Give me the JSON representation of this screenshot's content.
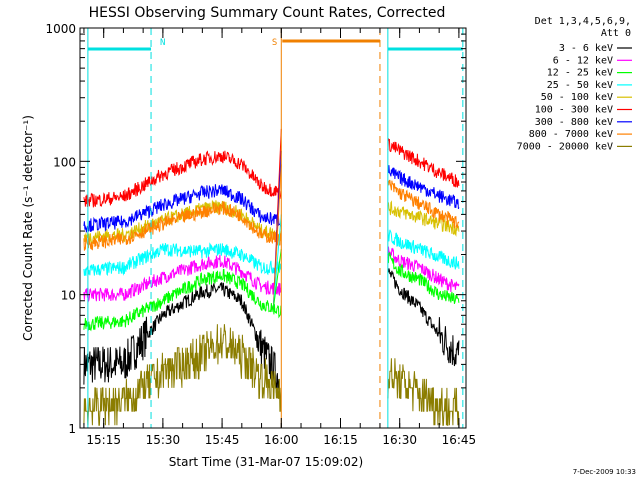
{
  "chart_data": {
    "type": "line",
    "title": "HESSI Observing Summary Count Rates, Corrected",
    "xlabel": "Start Time (31-Mar-07 15:09:02)",
    "ylabel": "Corrected Count Rate (s⁻¹ detector⁻¹)",
    "ylog": true,
    "ylim": [
      1,
      1000
    ],
    "xlim_minutes": [
      15.15,
      16.78
    ],
    "x_tick_labels": [
      "15:15",
      "15:30",
      "15:45",
      "16:00",
      "16:15",
      "16:30",
      "16:45"
    ],
    "y_tick_labels": [
      "1",
      "10",
      "100",
      "1000"
    ],
    "legend_header": [
      "Det 1,3,4,5,6,9,",
      "Att 0"
    ],
    "legend_position": "right",
    "timestamp": "7-Dec-2009 10:33",
    "annotations": [
      {
        "label": "N",
        "color": "#00e0e0"
      },
      {
        "label": "S",
        "color": "#f08000"
      }
    ],
    "gaps": [
      {
        "type": "night",
        "label": "N",
        "start": "15:11",
        "end": "15:27"
      },
      {
        "type": "saa",
        "label": "S",
        "start": "16:00",
        "end": "16:25"
      },
      {
        "type": "night",
        "label": "N",
        "start": "16:27",
        "end": "16:46"
      }
    ],
    "series": [
      {
        "name": "3 - 6 keV",
        "color": "#000000",
        "segment1": {
          "x": [
            "15:10",
            "15:20",
            "15:30",
            "15:40",
            "15:45",
            "15:50",
            "15:55",
            "16:00"
          ],
          "y": [
            3.0,
            3.0,
            7.0,
            10.5,
            11.0,
            9.0,
            4.0,
            2.2
          ]
        },
        "segment2": {
          "x": [
            "16:27",
            "16:30",
            "16:35",
            "16:40",
            "16:45"
          ],
          "y": [
            15,
            11,
            8,
            5,
            3.5
          ]
        }
      },
      {
        "name": "6 - 12 keV",
        "color": "#ff00ff",
        "segment1": {
          "x": [
            "15:10",
            "15:20",
            "15:30",
            "15:40",
            "15:45",
            "15:50",
            "15:55",
            "16:00"
          ],
          "y": [
            10,
            10,
            13.5,
            17,
            18,
            15,
            11.5,
            11
          ]
        },
        "segment2": {
          "x": [
            "16:27",
            "16:30",
            "16:35",
            "16:40",
            "16:45"
          ],
          "y": [
            21,
            18,
            16,
            13,
            11
          ]
        }
      },
      {
        "name": "12 - 25 keV",
        "color": "#00ff00",
        "segment1": {
          "x": [
            "15:10",
            "15:20",
            "15:30",
            "15:40",
            "15:45",
            "15:50",
            "15:55",
            "16:00"
          ],
          "y": [
            6,
            6.3,
            9,
            13,
            14,
            12,
            8.5,
            7.5
          ]
        },
        "segment2": {
          "x": [
            "16:27",
            "16:30",
            "16:35",
            "16:40",
            "16:45"
          ],
          "y": [
            19,
            15,
            13,
            10,
            9
          ]
        }
      },
      {
        "name": "25 - 50 keV",
        "color": "#00ffff",
        "segment1": {
          "x": [
            "15:10",
            "15:20",
            "15:30",
            "15:40",
            "15:45",
            "15:50",
            "15:55",
            "16:00"
          ],
          "y": [
            15,
            16,
            22,
            21,
            22,
            20,
            16,
            16
          ]
        },
        "segment2": {
          "x": [
            "16:27",
            "16:30",
            "16:35",
            "16:40",
            "16:45"
          ],
          "y": [
            28,
            25,
            22,
            19,
            17
          ]
        }
      },
      {
        "name": "50 - 100 keV",
        "color": "#d8c000",
        "segment1": {
          "x": [
            "15:10",
            "15:20",
            "15:30",
            "15:40",
            "15:45",
            "15:50",
            "15:55",
            "16:00"
          ],
          "y": [
            27,
            28,
            36,
            44,
            46,
            40,
            30,
            28
          ]
        },
        "segment2": {
          "x": [
            "16:27",
            "16:30",
            "16:35",
            "16:40",
            "16:45"
          ],
          "y": [
            45,
            42,
            38,
            34,
            31
          ]
        }
      },
      {
        "name": "100 - 300 keV",
        "color": "#ff0000",
        "segment1": {
          "x": [
            "15:10",
            "15:20",
            "15:30",
            "15:40",
            "15:45",
            "15:50",
            "15:55",
            "16:00"
          ],
          "y": [
            50,
            54,
            80,
            104,
            110,
            95,
            65,
            58
          ]
        },
        "segment2": {
          "x": [
            "16:27",
            "16:30",
            "16:35",
            "16:40",
            "16:45"
          ],
          "y": [
            135,
            120,
            100,
            82,
            70
          ]
        }
      },
      {
        "name": "300 - 800 keV",
        "color": "#0000ff",
        "segment1": {
          "x": [
            "15:10",
            "15:20",
            "15:30",
            "15:40",
            "15:45",
            "15:50",
            "15:55",
            "16:00"
          ],
          "y": [
            33,
            35,
            47,
            58,
            61,
            52,
            38,
            36
          ]
        },
        "segment2": {
          "x": [
            "16:27",
            "16:30",
            "16:35",
            "16:40",
            "16:45"
          ],
          "y": [
            85,
            75,
            65,
            55,
            48
          ]
        }
      },
      {
        "name": "800 - 7000 keV",
        "color": "#ff8000",
        "segment1": {
          "x": [
            "15:10",
            "15:20",
            "15:30",
            "15:40",
            "15:45",
            "15:50",
            "15:55",
            "16:00"
          ],
          "y": [
            24,
            26,
            34,
            42,
            45,
            39,
            28,
            26
          ]
        },
        "segment2": {
          "x": [
            "16:27",
            "16:30",
            "16:35",
            "16:40",
            "16:45"
          ],
          "y": [
            68,
            58,
            48,
            40,
            34
          ]
        }
      },
      {
        "name": "7000 - 20000 keV",
        "color": "#8b7d00",
        "segment1": {
          "x": [
            "15:10",
            "15:20",
            "15:30",
            "15:40",
            "15:45",
            "15:50",
            "15:55",
            "16:00"
          ],
          "y": [
            1.4,
            1.6,
            2.6,
            3.5,
            4.5,
            3.5,
            2.4,
            1.8
          ]
        },
        "segment2": {
          "x": [
            "16:27",
            "16:30",
            "16:35",
            "16:40",
            "16:45"
          ],
          "y": [
            2.5,
            2.2,
            1.8,
            1.5,
            1.3
          ]
        }
      }
    ]
  }
}
